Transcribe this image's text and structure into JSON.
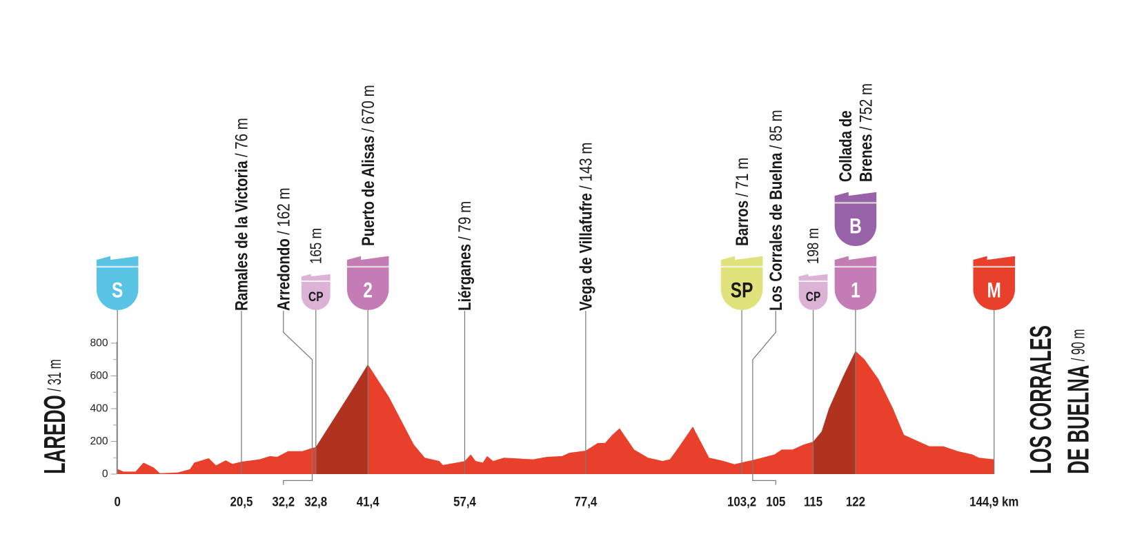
{
  "chart_data": {
    "type": "area",
    "color": "#e8402a",
    "climb_color": "#b0321f",
    "ylim": [
      0,
      800
    ],
    "yticks": [
      0,
      200,
      400,
      600,
      800
    ],
    "yticks_minor": [
      100,
      300,
      500,
      700
    ],
    "xlim": [
      0,
      144.9
    ],
    "x": [
      0,
      1,
      3,
      4.3,
      6,
      7,
      10,
      12,
      12.7,
      15.1,
      16.3,
      17.9,
      19,
      20.5,
      23.5,
      25.2,
      26.4,
      28.2,
      30.6,
      31.8,
      32.8,
      36.5,
      38.9,
      41.4,
      44.9,
      49,
      50.8,
      53.2,
      53.8,
      56.8,
      57.4,
      58.4,
      59.2,
      60.4,
      61.1,
      62.1,
      63.9,
      66.3,
      68.7,
      71,
      73.5,
      74.7,
      77.4,
      79.4,
      80.6,
      81.8,
      83,
      85.4,
      87.7,
      90.1,
      91.3,
      92.5,
      95.1,
      97.8,
      100.2,
      102,
      103.2,
      105,
      108.6,
      109.8,
      111.6,
      113.4,
      115,
      116.4,
      117.6,
      120,
      122,
      123.5,
      125.8,
      128.2,
      130,
      131.8,
      134.2,
      136.5,
      138.9,
      141.3,
      142.4,
      144.9
    ],
    "values": [
      31,
      15,
      15,
      70,
      40,
      5,
      10,
      30,
      70,
      97,
      53,
      84,
      62,
      76,
      90,
      110,
      105,
      140,
      140,
      155,
      165,
      380,
      520,
      670,
      470,
      180,
      100,
      80,
      55,
      75,
      79,
      120,
      80,
      70,
      110,
      80,
      100,
      95,
      90,
      105,
      110,
      130,
      143,
      190,
      190,
      240,
      280,
      150,
      100,
      80,
      90,
      150,
      290,
      100,
      80,
      60,
      71,
      85,
      120,
      150,
      150,
      180,
      198,
      260,
      400,
      600,
      752,
      700,
      580,
      400,
      240,
      210,
      170,
      170,
      140,
      120,
      100,
      90
    ],
    "waypoints": [
      {
        "km": 0,
        "name": "LAREDO",
        "altitude": "/ 31 m",
        "icons": [
          {
            "label": "S",
            "color": "#58c3e4"
          }
        ]
      },
      {
        "km": {
          "value": 20.5,
          "label": "20,5"
        },
        "name": "Ramales de la Victoria",
        "altitude": "/ 76 m"
      },
      {
        "km": {
          "value": 32.2,
          "label": "32,2"
        },
        "name": "Arredondo",
        "altitude": "/ 162 m"
      },
      {
        "km": {
          "value": 32.8,
          "label": "32,8"
        },
        "altitude": "165 m",
        "icons": [
          {
            "label": "CP",
            "color": "#dcb2d6"
          }
        ]
      },
      {
        "km": {
          "value": 41.4,
          "label": "41,4"
        },
        "name": "Puerto de Alisas",
        "altitude": "/ 670 m",
        "icons": [
          {
            "label": "2",
            "color": "#c47cb4"
          }
        ]
      },
      {
        "km": {
          "value": 57.4,
          "label": "57,4"
        },
        "name": "Liérganes",
        "altitude": "/ 79 m"
      },
      {
        "km": {
          "value": 77.4,
          "label": "77,4"
        },
        "name": "Vega de Villafufre",
        "altitude": "/ 143 m"
      },
      {
        "km": {
          "value": 103.2,
          "label": "103,2"
        },
        "name": "Barros",
        "altitude": "/ 71 m",
        "icons": [
          {
            "label": "SP",
            "color": "#e0e27c"
          }
        ]
      },
      {
        "km": 105,
        "name": "Los Corrales de Buelna",
        "altitude": "/ 85 m"
      },
      {
        "km": 115,
        "altitude": "198 m",
        "icons": [
          {
            "label": "CP",
            "color": "#dcb2d6"
          }
        ]
      },
      {
        "km": 122,
        "name": [
          "Collada de",
          "Brenes"
        ],
        "altitude": "/ 752 m",
        "icons": [
          {
            "label": "1",
            "color": "#c47cb4"
          },
          {
            "label": "B",
            "color": "#9862a8"
          }
        ]
      },
      {
        "km": {
          "value": 144.9,
          "label": "144,9 km"
        },
        "name": [
          "LOS CORRALES",
          "DE BUELNA"
        ],
        "altitude": "/ 90 m",
        "icons": [
          {
            "label": "M",
            "color": "#e8402a"
          }
        ]
      }
    ]
  }
}
